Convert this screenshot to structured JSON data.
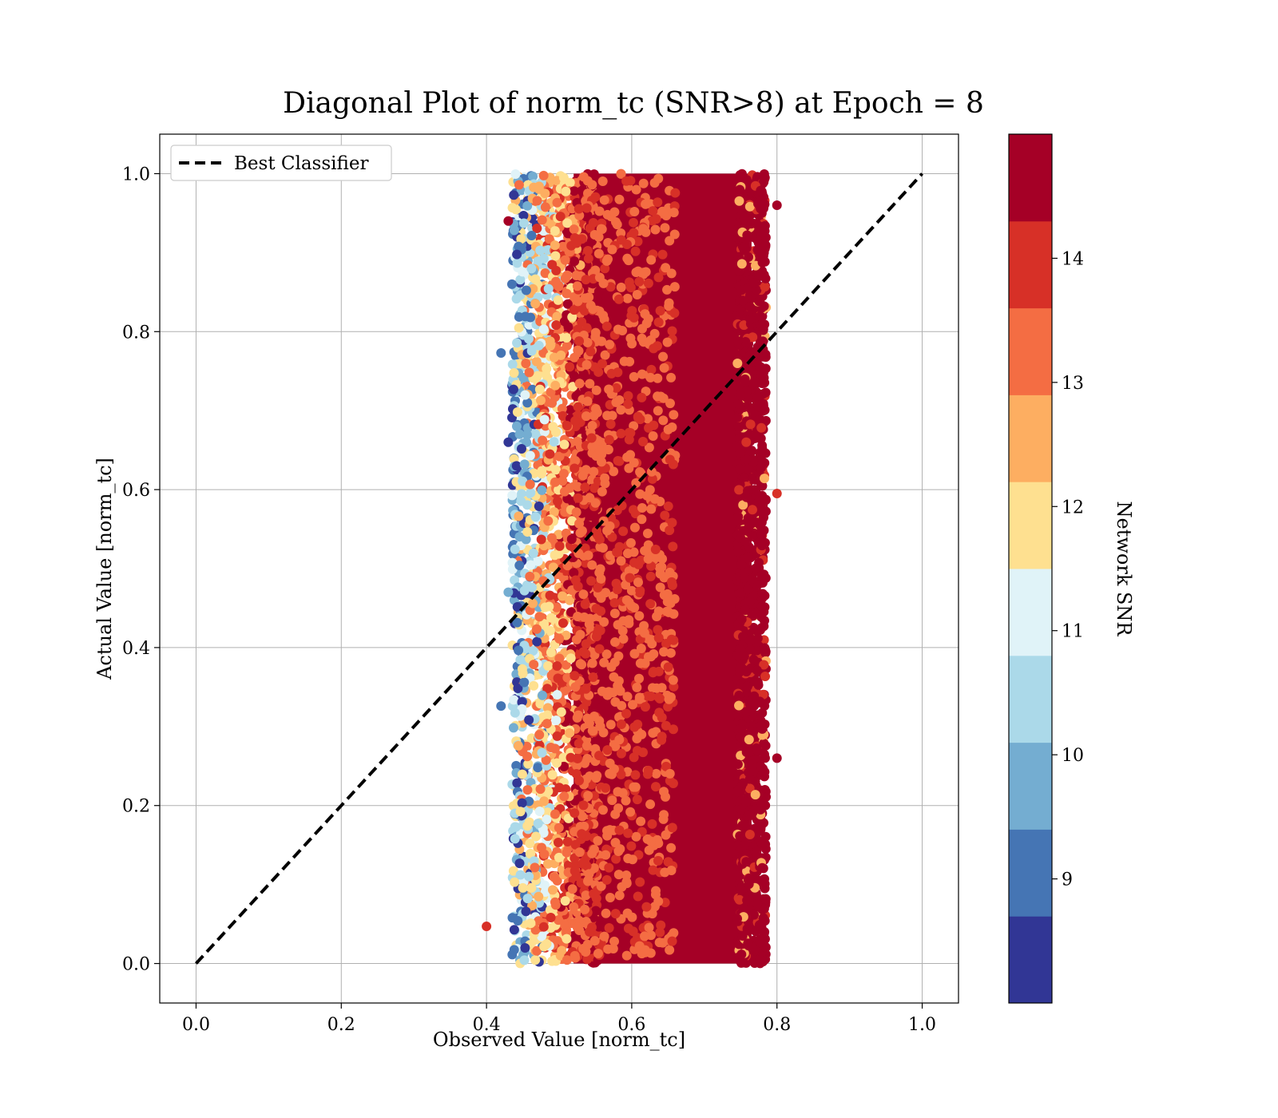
{
  "chart_data": {
    "type": "scatter",
    "title": "Diagonal Plot of norm_tc (SNR>8) at Epoch = 8",
    "xlabel": "Observed Value [norm_tc]",
    "ylabel": "Actual Value [norm_tc]",
    "xlim": [
      -0.05,
      1.05
    ],
    "ylim": [
      -0.05,
      1.05
    ],
    "xticks": [
      "0.0",
      "0.2",
      "0.4",
      "0.6",
      "0.8",
      "1.0"
    ],
    "yticks": [
      "0.0",
      "0.2",
      "0.4",
      "0.6",
      "0.8",
      "1.0"
    ],
    "grid": true,
    "legend": {
      "placement": "upper-left",
      "entries": [
        "Best Classifier"
      ]
    },
    "reference_line": {
      "name": "Best Classifier",
      "x": [
        0,
        1
      ],
      "y": [
        0,
        1
      ],
      "style": "dashed",
      "color": "#000000"
    },
    "colorbar": {
      "label": "Network SNR",
      "range": [
        8,
        15
      ],
      "ticks": [
        "9",
        "10",
        "11",
        "12",
        "13",
        "14"
      ],
      "colors": [
        "#313695",
        "#4575b4",
        "#74add1",
        "#abd9e9",
        "#e0f3f8",
        "#fee090",
        "#fdae61",
        "#f46d43",
        "#d73027",
        "#a50026"
      ]
    },
    "scatter_distribution": {
      "x_range": [
        0.43,
        0.8
      ],
      "y_range": [
        0.0,
        1.0
      ],
      "dominant_color": "#a50026",
      "low_snr_region_x": [
        0.43,
        0.52
      ]
    }
  }
}
